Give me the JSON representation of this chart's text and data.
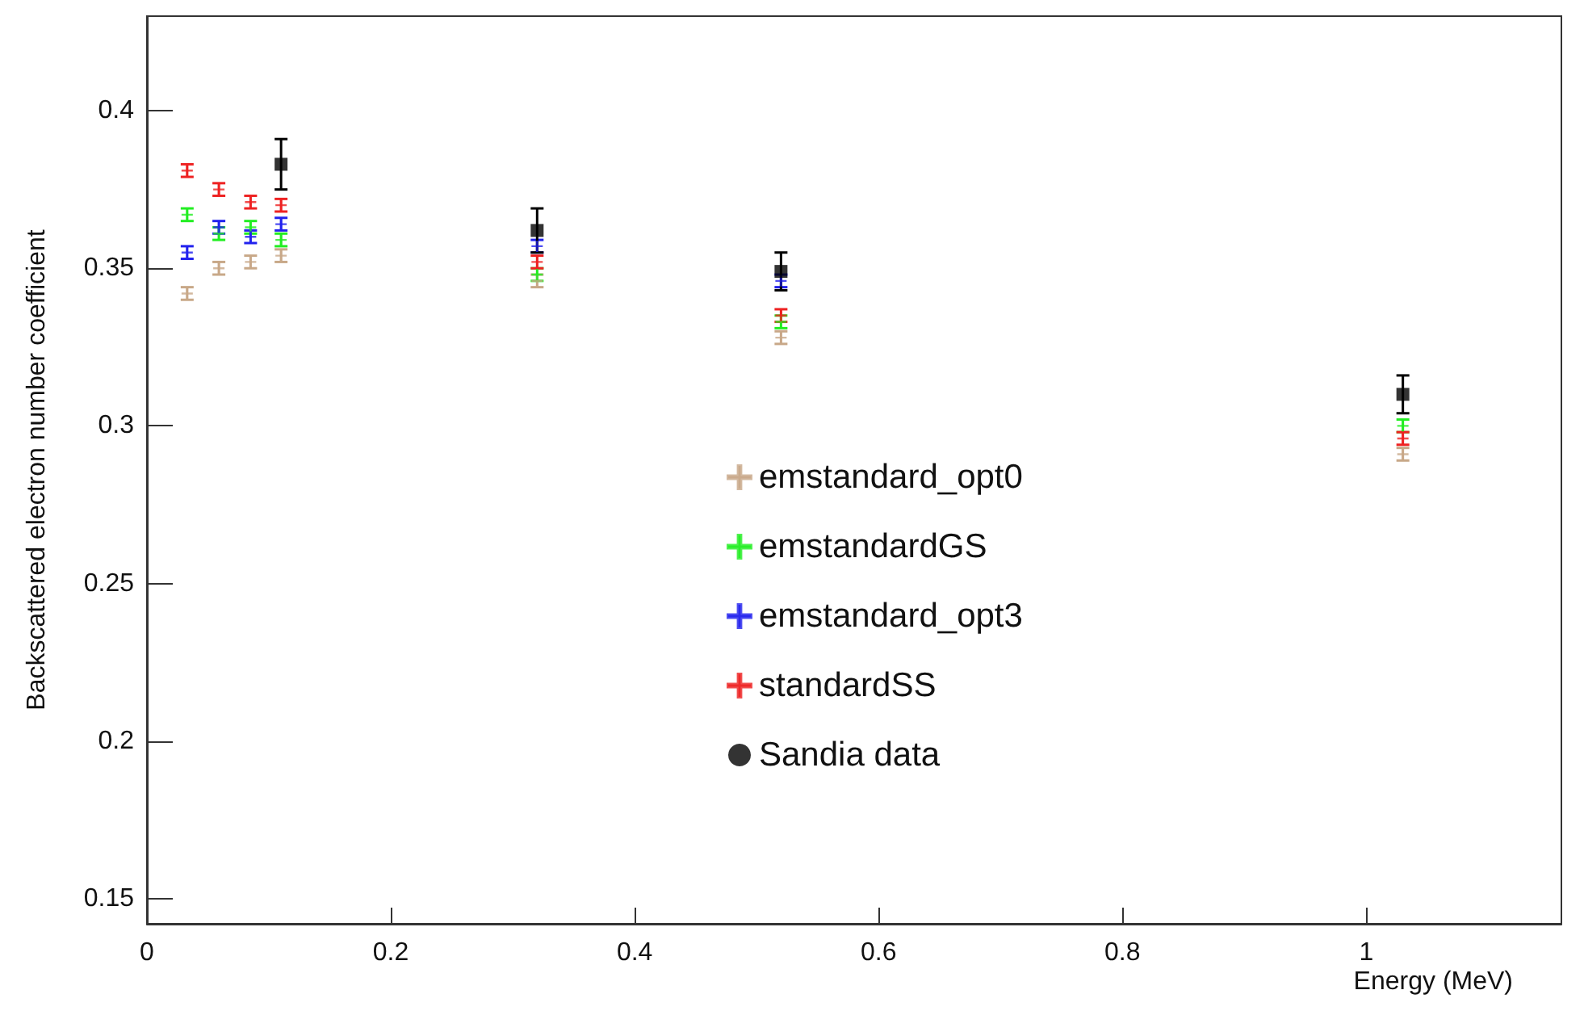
{
  "chart_data": {
    "type": "scatter",
    "xlabel": "Energy (MeV)",
    "ylabel": "Backscattered electron number coefficient",
    "xlim": [
      0,
      1.16
    ],
    "xticks": [
      0,
      0.2,
      0.4,
      0.6,
      0.8,
      1
    ],
    "ylim": [
      0.142,
      0.43
    ],
    "yticks": [
      0.15,
      0.2,
      0.25,
      0.3,
      0.35,
      0.4
    ],
    "grid": false,
    "legend": "center",
    "marker": "cross",
    "series": [
      {
        "name": "emstandard_opt0",
        "color": "#c8a888",
        "x": [
          0.033,
          0.059,
          0.085,
          0.11,
          0.32,
          0.52,
          1.03
        ],
        "values": [
          0.342,
          0.35,
          0.352,
          0.354,
          0.346,
          0.328,
          0.291
        ],
        "errors": [
          0.002,
          0.002,
          0.002,
          0.002,
          0.002,
          0.002,
          0.002
        ]
      },
      {
        "name": "emstandardGS",
        "color": "#22ee22",
        "x": [
          0.033,
          0.059,
          0.085,
          0.11,
          0.32,
          0.52,
          1.03
        ],
        "values": [
          0.367,
          0.361,
          0.363,
          0.359,
          0.348,
          0.333,
          0.3
        ],
        "errors": [
          0.002,
          0.002,
          0.002,
          0.002,
          0.002,
          0.002,
          0.002
        ]
      },
      {
        "name": "emstandard_opt3",
        "color": "#2222ee",
        "x": [
          0.033,
          0.059,
          0.085,
          0.11,
          0.32,
          0.52
        ],
        "values": [
          0.355,
          0.363,
          0.36,
          0.364,
          0.357,
          0.346
        ],
        "errors": [
          0.002,
          0.002,
          0.002,
          0.002,
          0.002,
          0.002
        ]
      },
      {
        "name": "standardSS",
        "color": "#ee2222",
        "x": [
          0.033,
          0.059,
          0.085,
          0.11,
          0.32,
          0.52,
          1.03
        ],
        "values": [
          0.381,
          0.375,
          0.371,
          0.37,
          0.352,
          0.335,
          0.296
        ],
        "errors": [
          0.002,
          0.002,
          0.002,
          0.002,
          0.002,
          0.002,
          0.002
        ]
      },
      {
        "name": "Sandia data",
        "color": "#000000",
        "marker": "square",
        "x": [
          0.11,
          0.32,
          0.52,
          1.03
        ],
        "values": [
          0.383,
          0.362,
          0.349,
          0.31
        ],
        "errors": [
          0.008,
          0.007,
          0.006,
          0.006
        ]
      }
    ]
  }
}
